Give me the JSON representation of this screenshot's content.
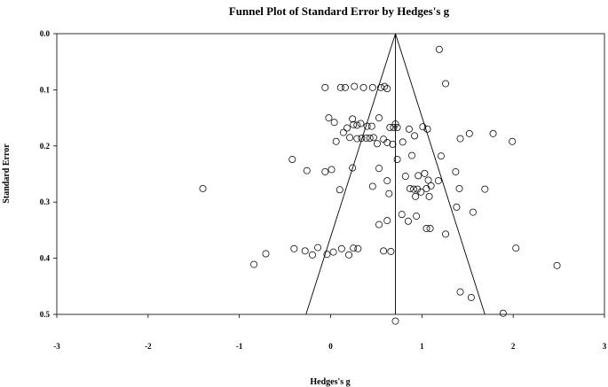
{
  "chart_data": {
    "type": "scatter",
    "title": "Funnel Plot of Standard Error by Hedges's g",
    "xlabel": "Hedges's g",
    "ylabel": "Standard Error",
    "xlim": [
      -3,
      3
    ],
    "ylim": [
      0.0,
      0.5
    ],
    "y_inverted": true,
    "x_ticks": [
      "-3",
      "-2",
      "-1",
      "0",
      "1",
      "2",
      "3"
    ],
    "y_ticks": [
      "0.0",
      "0.1",
      "0.2",
      "0.3",
      "0.4",
      "0.5"
    ],
    "grid": false,
    "legend": "none",
    "pooled_effect": 0.71,
    "funnel_se_max": 0.5,
    "funnel_bounds_at_max": [
      -0.27,
      1.69
    ],
    "marker": "open-circle",
    "points": [
      [
        1.19,
        0.028
      ],
      [
        1.26,
        0.089
      ],
      [
        -0.06,
        0.096
      ],
      [
        0.11,
        0.096
      ],
      [
        0.16,
        0.096
      ],
      [
        0.26,
        0.094
      ],
      [
        0.36,
        0.096
      ],
      [
        0.46,
        0.096
      ],
      [
        0.55,
        0.096
      ],
      [
        0.59,
        0.094
      ],
      [
        0.62,
        0.098
      ],
      [
        -0.02,
        0.15
      ],
      [
        0.04,
        0.158
      ],
      [
        0.24,
        0.152
      ],
      [
        0.53,
        0.15
      ],
      [
        1.06,
        0.17
      ],
      [
        0.18,
        0.168
      ],
      [
        0.25,
        0.162
      ],
      [
        0.29,
        0.163
      ],
      [
        0.33,
        0.16
      ],
      [
        0.4,
        0.165
      ],
      [
        0.45,
        0.165
      ],
      [
        0.65,
        0.167
      ],
      [
        0.69,
        0.167
      ],
      [
        0.71,
        0.161
      ],
      [
        0.73,
        0.167
      ],
      [
        0.86,
        0.17
      ],
      [
        1.01,
        0.166
      ],
      [
        1.52,
        0.178
      ],
      [
        1.78,
        0.178
      ],
      [
        0.06,
        0.192
      ],
      [
        0.14,
        0.176
      ],
      [
        0.21,
        0.185
      ],
      [
        0.29,
        0.187
      ],
      [
        0.34,
        0.186
      ],
      [
        0.39,
        0.186
      ],
      [
        0.43,
        0.186
      ],
      [
        0.47,
        0.185
      ],
      [
        0.51,
        0.196
      ],
      [
        0.58,
        0.188
      ],
      [
        0.62,
        0.194
      ],
      [
        0.68,
        0.197
      ],
      [
        0.79,
        0.193
      ],
      [
        0.92,
        0.182
      ],
      [
        1.21,
        0.218
      ],
      [
        1.42,
        0.187
      ],
      [
        1.99,
        0.192
      ],
      [
        -0.42,
        0.224
      ],
      [
        -0.26,
        0.244
      ],
      [
        -0.06,
        0.246
      ],
      [
        0.01,
        0.242
      ],
      [
        0.24,
        0.239
      ],
      [
        0.53,
        0.24
      ],
      [
        0.73,
        0.224
      ],
      [
        0.82,
        0.254
      ],
      [
        0.89,
        0.217
      ],
      [
        0.96,
        0.253
      ],
      [
        1.03,
        0.249
      ],
      [
        1.07,
        0.261
      ],
      [
        1.37,
        0.246
      ],
      [
        1.18,
        0.262
      ],
      [
        -1.4,
        0.276
      ],
      [
        0.1,
        0.278
      ],
      [
        0.46,
        0.272
      ],
      [
        0.62,
        0.262
      ],
      [
        0.64,
        0.285
      ],
      [
        0.87,
        0.276
      ],
      [
        0.91,
        0.277
      ],
      [
        0.95,
        0.277
      ],
      [
        0.99,
        0.282
      ],
      [
        1.05,
        0.276
      ],
      [
        1.1,
        0.271
      ],
      [
        1.41,
        0.276
      ],
      [
        1.69,
        0.277
      ],
      [
        0.93,
        0.29
      ],
      [
        1.08,
        0.29
      ],
      [
        1.38,
        0.309
      ],
      [
        1.56,
        0.318
      ],
      [
        0.62,
        0.333
      ],
      [
        0.78,
        0.322
      ],
      [
        0.85,
        0.334
      ],
      [
        0.94,
        0.325
      ],
      [
        1.05,
        0.347
      ],
      [
        1.09,
        0.347
      ],
      [
        1.26,
        0.357
      ],
      [
        0.53,
        0.34
      ],
      [
        -0.71,
        0.392
      ],
      [
        -0.4,
        0.383
      ],
      [
        -0.28,
        0.387
      ],
      [
        -0.2,
        0.394
      ],
      [
        -0.14,
        0.381
      ],
      [
        -0.04,
        0.393
      ],
      [
        0.03,
        0.389
      ],
      [
        0.12,
        0.383
      ],
      [
        0.2,
        0.394
      ],
      [
        0.25,
        0.382
      ],
      [
        0.3,
        0.383
      ],
      [
        0.58,
        0.387
      ],
      [
        0.66,
        0.388
      ],
      [
        2.03,
        0.382
      ],
      [
        -0.84,
        0.411
      ],
      [
        1.42,
        0.46
      ],
      [
        1.54,
        0.47
      ],
      [
        1.89,
        0.498
      ],
      [
        2.48,
        0.413
      ],
      [
        0.71,
        0.512
      ]
    ]
  }
}
